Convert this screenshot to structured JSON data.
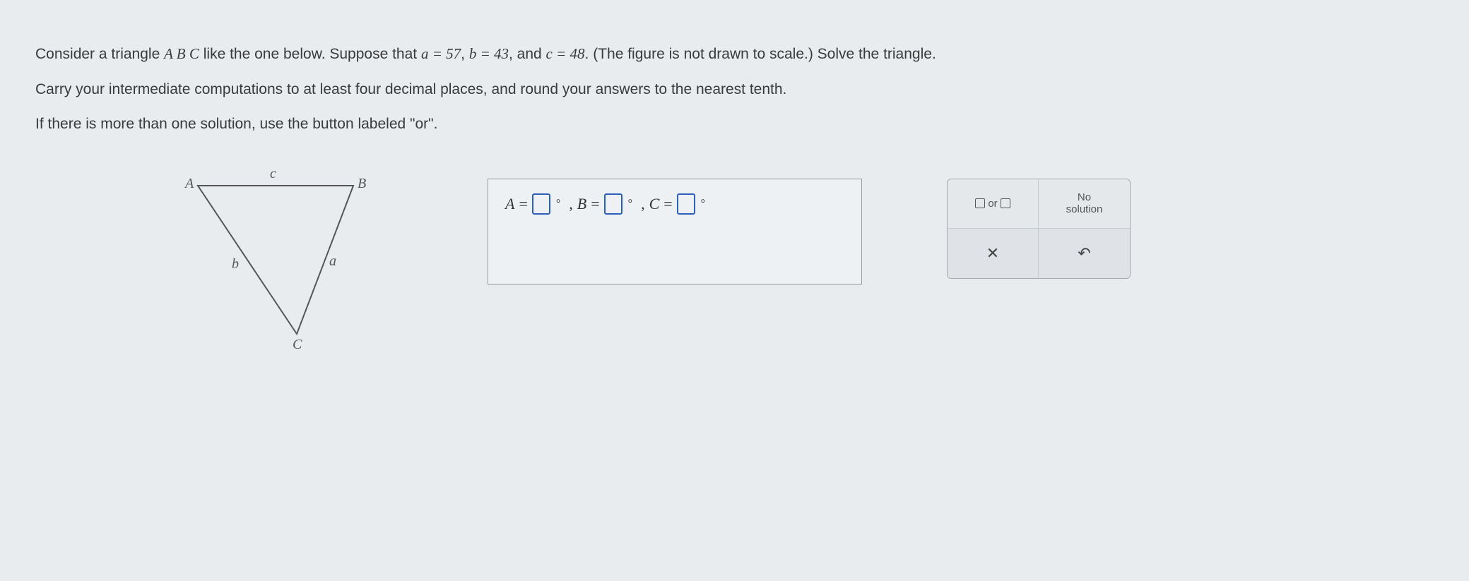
{
  "problem": {
    "line1_prefix": "Consider a triangle ",
    "triangle_name": "A B C",
    "line1_mid": " like the one below. Suppose that ",
    "eq_a": "a = 57",
    "eq_b": "b = 43",
    "eq_c": "c = 48",
    "line1_suffix": ". (The figure is not drawn to scale.) Solve the triangle.",
    "line2": "Carry your intermediate computations to at least four decimal places, and round your answers to the nearest tenth.",
    "line3": "If there is more than one solution, use the button labeled \"or\"."
  },
  "triangle": {
    "vertex_A": "A",
    "vertex_B": "B",
    "vertex_C": "C",
    "side_a": "a",
    "side_b": "b",
    "side_c": "c",
    "points": {
      "A": [
        10,
        10
      ],
      "B": [
        230,
        10
      ],
      "C": [
        150,
        220
      ]
    },
    "stroke": "#555555",
    "stroke_width": 2
  },
  "answer": {
    "var_A": "A",
    "var_B": "B",
    "var_C": "C",
    "eq": " = ",
    "comma": ", ",
    "degree": "°"
  },
  "toolbox": {
    "or_label": "or",
    "no_solution": "No\nsolution"
  },
  "colors": {
    "page_bg": "#e8ecef",
    "text": "#3a3a3a",
    "input_border": "#2b5fb8",
    "box_border": "#999999"
  }
}
